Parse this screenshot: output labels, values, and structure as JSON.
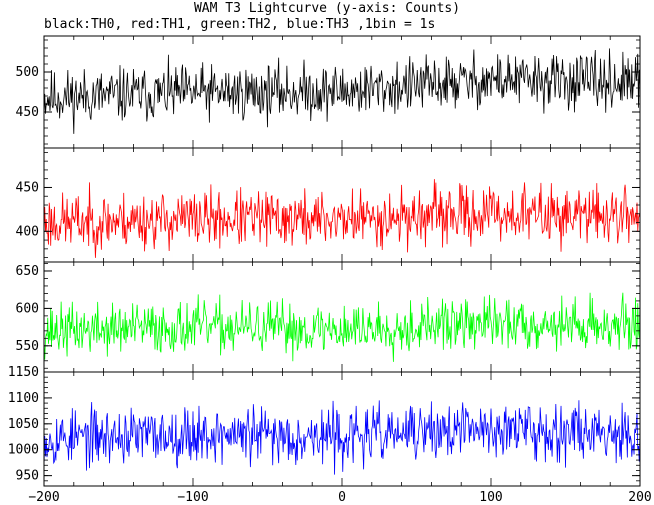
{
  "title": "WAM T3 Lightcurve (y-axis: Counts)",
  "subtitle": "black:TH0, red:TH1, green:TH2, blue:TH3 ,1bin = 1s",
  "chart_data": {
    "type": "line",
    "xlim": [
      -200,
      200
    ],
    "x_ticks": [
      -200,
      -100,
      0,
      100,
      200
    ],
    "x_tick_labels": [
      "−200",
      "−100",
      "0",
      "100",
      "200"
    ],
    "bin_seconds": 1,
    "grid": false,
    "legend": "none",
    "panels": [
      {
        "name": "TH0",
        "color": "#000000",
        "ylim": [
          405,
          545
        ],
        "y_ticks": [
          450,
          500
        ],
        "y_tick_labels": [
          "450",
          "500"
        ],
        "mean": 478,
        "noise": 17,
        "trend": [
          [
            -200,
            468
          ],
          [
            -100,
            474
          ],
          [
            0,
            476
          ],
          [
            100,
            490
          ],
          [
            200,
            486
          ]
        ],
        "seed": 11
      },
      {
        "name": "TH1",
        "color": "#ff0000",
        "ylim": [
          365,
          495
        ],
        "y_ticks": [
          400,
          450
        ],
        "y_tick_labels": [
          "400",
          "450"
        ],
        "mean": 415,
        "noise": 16,
        "trend": [
          [
            -200,
            410
          ],
          [
            -100,
            414
          ],
          [
            0,
            414
          ],
          [
            100,
            420
          ],
          [
            200,
            418
          ]
        ],
        "seed": 23
      },
      {
        "name": "TH2",
        "color": "#00ff00",
        "ylim": [
          515,
          662
        ],
        "y_ticks": [
          550,
          600,
          650
        ],
        "y_tick_labels": [
          "550",
          "600",
          "650"
        ],
        "mean": 575,
        "noise": 17,
        "trend": [
          [
            -200,
            570
          ],
          [
            -100,
            575
          ],
          [
            0,
            572
          ],
          [
            100,
            580
          ],
          [
            200,
            577
          ]
        ],
        "seed": 37
      },
      {
        "name": "TH3",
        "color": "#0000ff",
        "ylim": [
          930,
          1150
        ],
        "y_ticks": [
          950,
          1000,
          1050,
          1100,
          1150
        ],
        "y_tick_labels": [
          "950",
          "1000",
          "1050",
          "1100",
          "1150"
        ],
        "mean": 1030,
        "noise": 27,
        "trend": [
          [
            -200,
            1022
          ],
          [
            -100,
            1030
          ],
          [
            0,
            1025
          ],
          [
            100,
            1040
          ],
          [
            200,
            1035
          ]
        ],
        "seed": 53
      }
    ]
  }
}
